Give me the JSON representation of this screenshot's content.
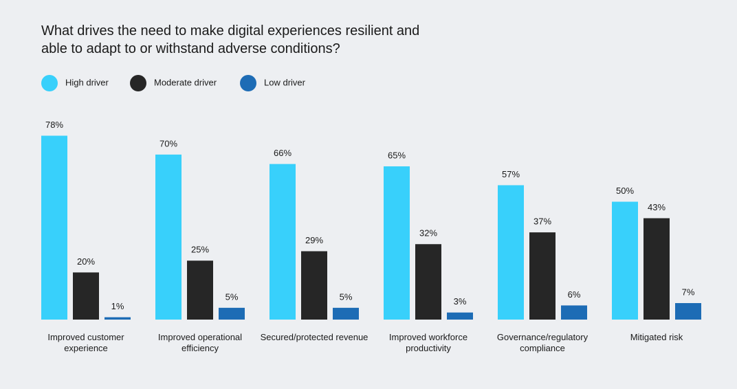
{
  "chart_data": {
    "type": "bar",
    "title": "What drives the need to make digital experiences resilient and able to adapt to or withstand adverse conditions?",
    "categories": [
      "Improved customer experience",
      "Improved operational efficiency",
      "Secured/protected revenue",
      "Improved workforce productivity",
      "Governance/regulatory compliance",
      "Mitigated risk"
    ],
    "series": [
      {
        "name": "High driver",
        "color": "#38d0fb",
        "values": [
          78,
          70,
          66,
          65,
          57,
          50
        ],
        "value_labels": [
          "78%",
          "70%",
          "66%",
          "65%",
          "57%",
          "50%"
        ]
      },
      {
        "name": "Moderate driver",
        "color": "#262626",
        "values": [
          20,
          25,
          29,
          32,
          37,
          43
        ],
        "value_labels": [
          "20%",
          "25%",
          "29%",
          "32%",
          "37%",
          "43%"
        ]
      },
      {
        "name": "Low driver",
        "color": "#1d6cb5",
        "values": [
          1,
          5,
          5,
          3,
          6,
          7
        ],
        "value_labels": [
          "1%",
          "5%",
          "5%",
          "3%",
          "6%",
          "7%"
        ]
      }
    ]
  }
}
